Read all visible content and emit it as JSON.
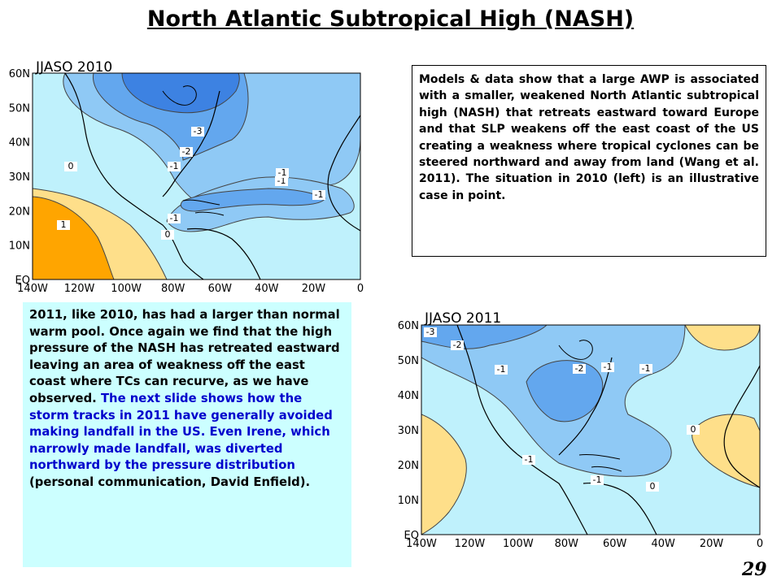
{
  "slide": {
    "title": "North Atlantic Subtropical High (NASH)",
    "page_number": "29"
  },
  "map_2010": {
    "label": "JJASO 2010",
    "lat_labels": [
      "60N",
      "50N",
      "40N",
      "30N",
      "20N",
      "10N",
      "EQ"
    ],
    "lon_labels": [
      "140W",
      "120W",
      "100W",
      "80W",
      "60W",
      "40W",
      "20W",
      "0"
    ],
    "contour_labels": [
      "-3",
      "-2",
      "-1",
      "0",
      "-1",
      "-1",
      "-1",
      "1",
      "0",
      "-1"
    ]
  },
  "map_2011": {
    "label": "JJASO 2011",
    "lat_labels": [
      "60N",
      "50N",
      "40N",
      "30N",
      "20N",
      "10N",
      "EQ"
    ],
    "lon_labels": [
      "140W",
      "120W",
      "100W",
      "80W",
      "60W",
      "40W",
      "20W",
      "0"
    ],
    "contour_labels": [
      "-3",
      "-2",
      "-1",
      "-2",
      "-1",
      "0",
      "-1",
      "-1",
      "-1",
      "0"
    ]
  },
  "text_box_1": {
    "text": "Models & data show that a large AWP is associated with a smaller, weakened North Atlantic subtropical high (NASH) that retreats eastward toward Europe and that SLP weakens off the east coast of the US creating a weakness where tropical cyclones can be steered northward and away from land (Wang et al. 2011). The situation in 2010 (left) is an illustrative case in point."
  },
  "text_box_2": {
    "part1": "2011, like 2010, has had a larger than normal warm pool.  Once again we find that the high pressure of the NASH has retreated eastward leaving an area of weakness off the east coast where TCs can recurve, as we have observed. ",
    "part2": "The next slide shows how the storm tracks in 2011 have generally avoided making landfall in the US. Even Irene, which narrowly made landfall, was diverted northward by the pressure distribution",
    "part3": " (personal communication, David Enfield)."
  },
  "colors": {
    "pos_orange": "#ffa500",
    "pos_light": "#fedf8a",
    "neutral": "#bff1fc",
    "neg_light": "#8fc9f5",
    "neg_mid": "#63a7ee",
    "neg_dark": "#3d82e2",
    "text_blue": "#0000cc",
    "box_bg": "#ccffff"
  }
}
